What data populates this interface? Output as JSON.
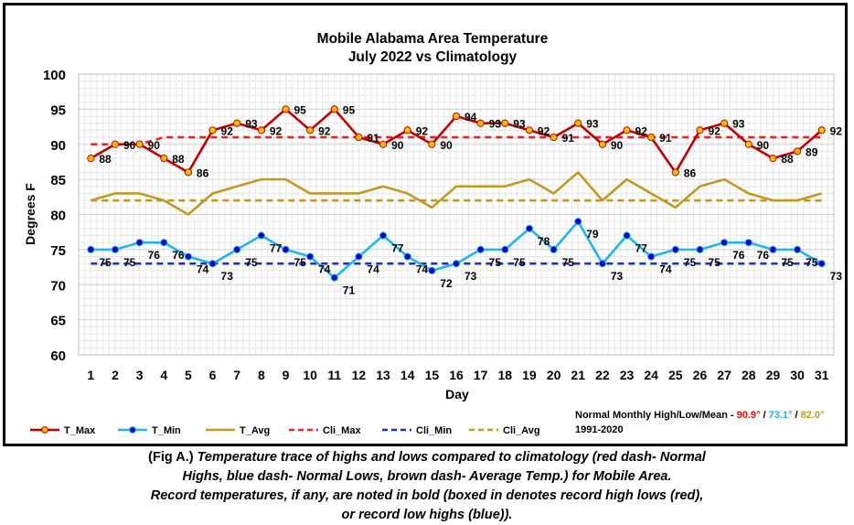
{
  "chart_data": {
    "type": "line",
    "title": "Mobile Alabama Area Temperature",
    "subtitle": "July 2022 vs Climatology",
    "xlabel": "Day",
    "ylabel": "Degrees F",
    "ylim": [
      60,
      100
    ],
    "yticks": [
      60,
      65,
      70,
      75,
      80,
      85,
      90,
      95,
      100
    ],
    "x": [
      1,
      2,
      3,
      4,
      5,
      6,
      7,
      8,
      9,
      10,
      11,
      12,
      13,
      14,
      15,
      16,
      17,
      18,
      19,
      20,
      21,
      22,
      23,
      24,
      25,
      26,
      27,
      28,
      29,
      30,
      31
    ],
    "grid": true,
    "legend_position": "bottom-left",
    "series": [
      {
        "name": "T_Max",
        "color": "#c00000",
        "style": "solid",
        "markers": true,
        "marker_color": "#ffc000",
        "label_color": "#000000",
        "values": [
          88,
          90,
          90,
          88,
          86,
          92,
          93,
          92,
          95,
          92,
          95,
          91,
          90,
          92,
          90,
          94,
          93,
          93,
          92,
          91,
          93,
          90,
          92,
          91,
          86,
          92,
          93,
          90,
          88,
          89,
          92
        ]
      },
      {
        "name": "T_Min",
        "color": "#1eb4f0",
        "style": "solid",
        "markers": true,
        "marker_color": "#0000cc",
        "label_color": "#000000",
        "values": [
          75,
          75,
          76,
          76,
          74,
          73,
          75,
          77,
          75,
          74,
          71,
          74,
          77,
          74,
          72,
          73,
          75,
          75,
          78,
          75,
          79,
          73,
          77,
          74,
          75,
          75,
          76,
          76,
          75,
          75,
          73
        ]
      },
      {
        "name": "T_Avg",
        "color": "#c09a20",
        "style": "solid",
        "markers": false,
        "values": [
          82,
          83,
          83,
          82,
          80,
          83,
          84,
          85,
          85,
          83,
          83,
          83,
          84,
          83,
          81,
          84,
          84,
          84,
          85,
          83,
          86,
          82,
          85,
          83,
          81,
          84,
          85,
          83,
          82,
          82,
          83
        ]
      },
      {
        "name": "Cli_Max",
        "color": "#ee2020",
        "style": "dashed",
        "markers": false,
        "values": [
          90,
          90,
          90,
          91,
          91,
          91,
          91,
          91,
          91,
          91,
          91,
          91,
          91,
          91,
          91,
          91,
          91,
          91,
          91,
          91,
          91,
          91,
          91,
          91,
          91,
          91,
          91,
          91,
          91,
          91,
          91
        ]
      },
      {
        "name": "Cli_Min",
        "color": "#1e2ed0",
        "style": "dashed",
        "markers": false,
        "values": [
          73,
          73,
          73,
          73,
          73,
          73,
          73,
          73,
          73,
          73,
          73,
          73,
          73,
          73,
          73,
          73,
          73,
          73,
          73,
          73,
          73,
          73,
          73,
          73,
          73,
          73,
          73,
          73,
          73,
          73,
          73
        ]
      },
      {
        "name": "Cli_Avg",
        "color": "#c09a20",
        "style": "dashed",
        "markers": false,
        "values": [
          82,
          82,
          82,
          82,
          82,
          82,
          82,
          82,
          82,
          82,
          82,
          82,
          82,
          82,
          82,
          82,
          82,
          82,
          82,
          82,
          82,
          82,
          82,
          82,
          82,
          82,
          82,
          82,
          82,
          82,
          82
        ]
      }
    ],
    "normals_note": {
      "prefix": "Normal Monthly High/Low/Mean - ",
      "high": "90.9°",
      "high_color": "#ff0000",
      "sep1": "/",
      "low": "73.1°",
      "low_color": "#1eb4f0",
      "sep2": "/",
      "mean": "82.0°",
      "mean_color": "#c09a20",
      "period": "1991-2020"
    }
  },
  "caption": {
    "lead": "(Fig A.)",
    "line1": " Temperature trace of highs and lows compared to climatology (red dash- Normal",
    "line2": "Highs, blue dash- Normal Lows, brown dash- Average Temp.) for Mobile Area.",
    "line3": "Record temperatures, if any, are noted in bold (boxed in denotes record high lows (red),",
    "line4": "or record low highs (blue))."
  }
}
